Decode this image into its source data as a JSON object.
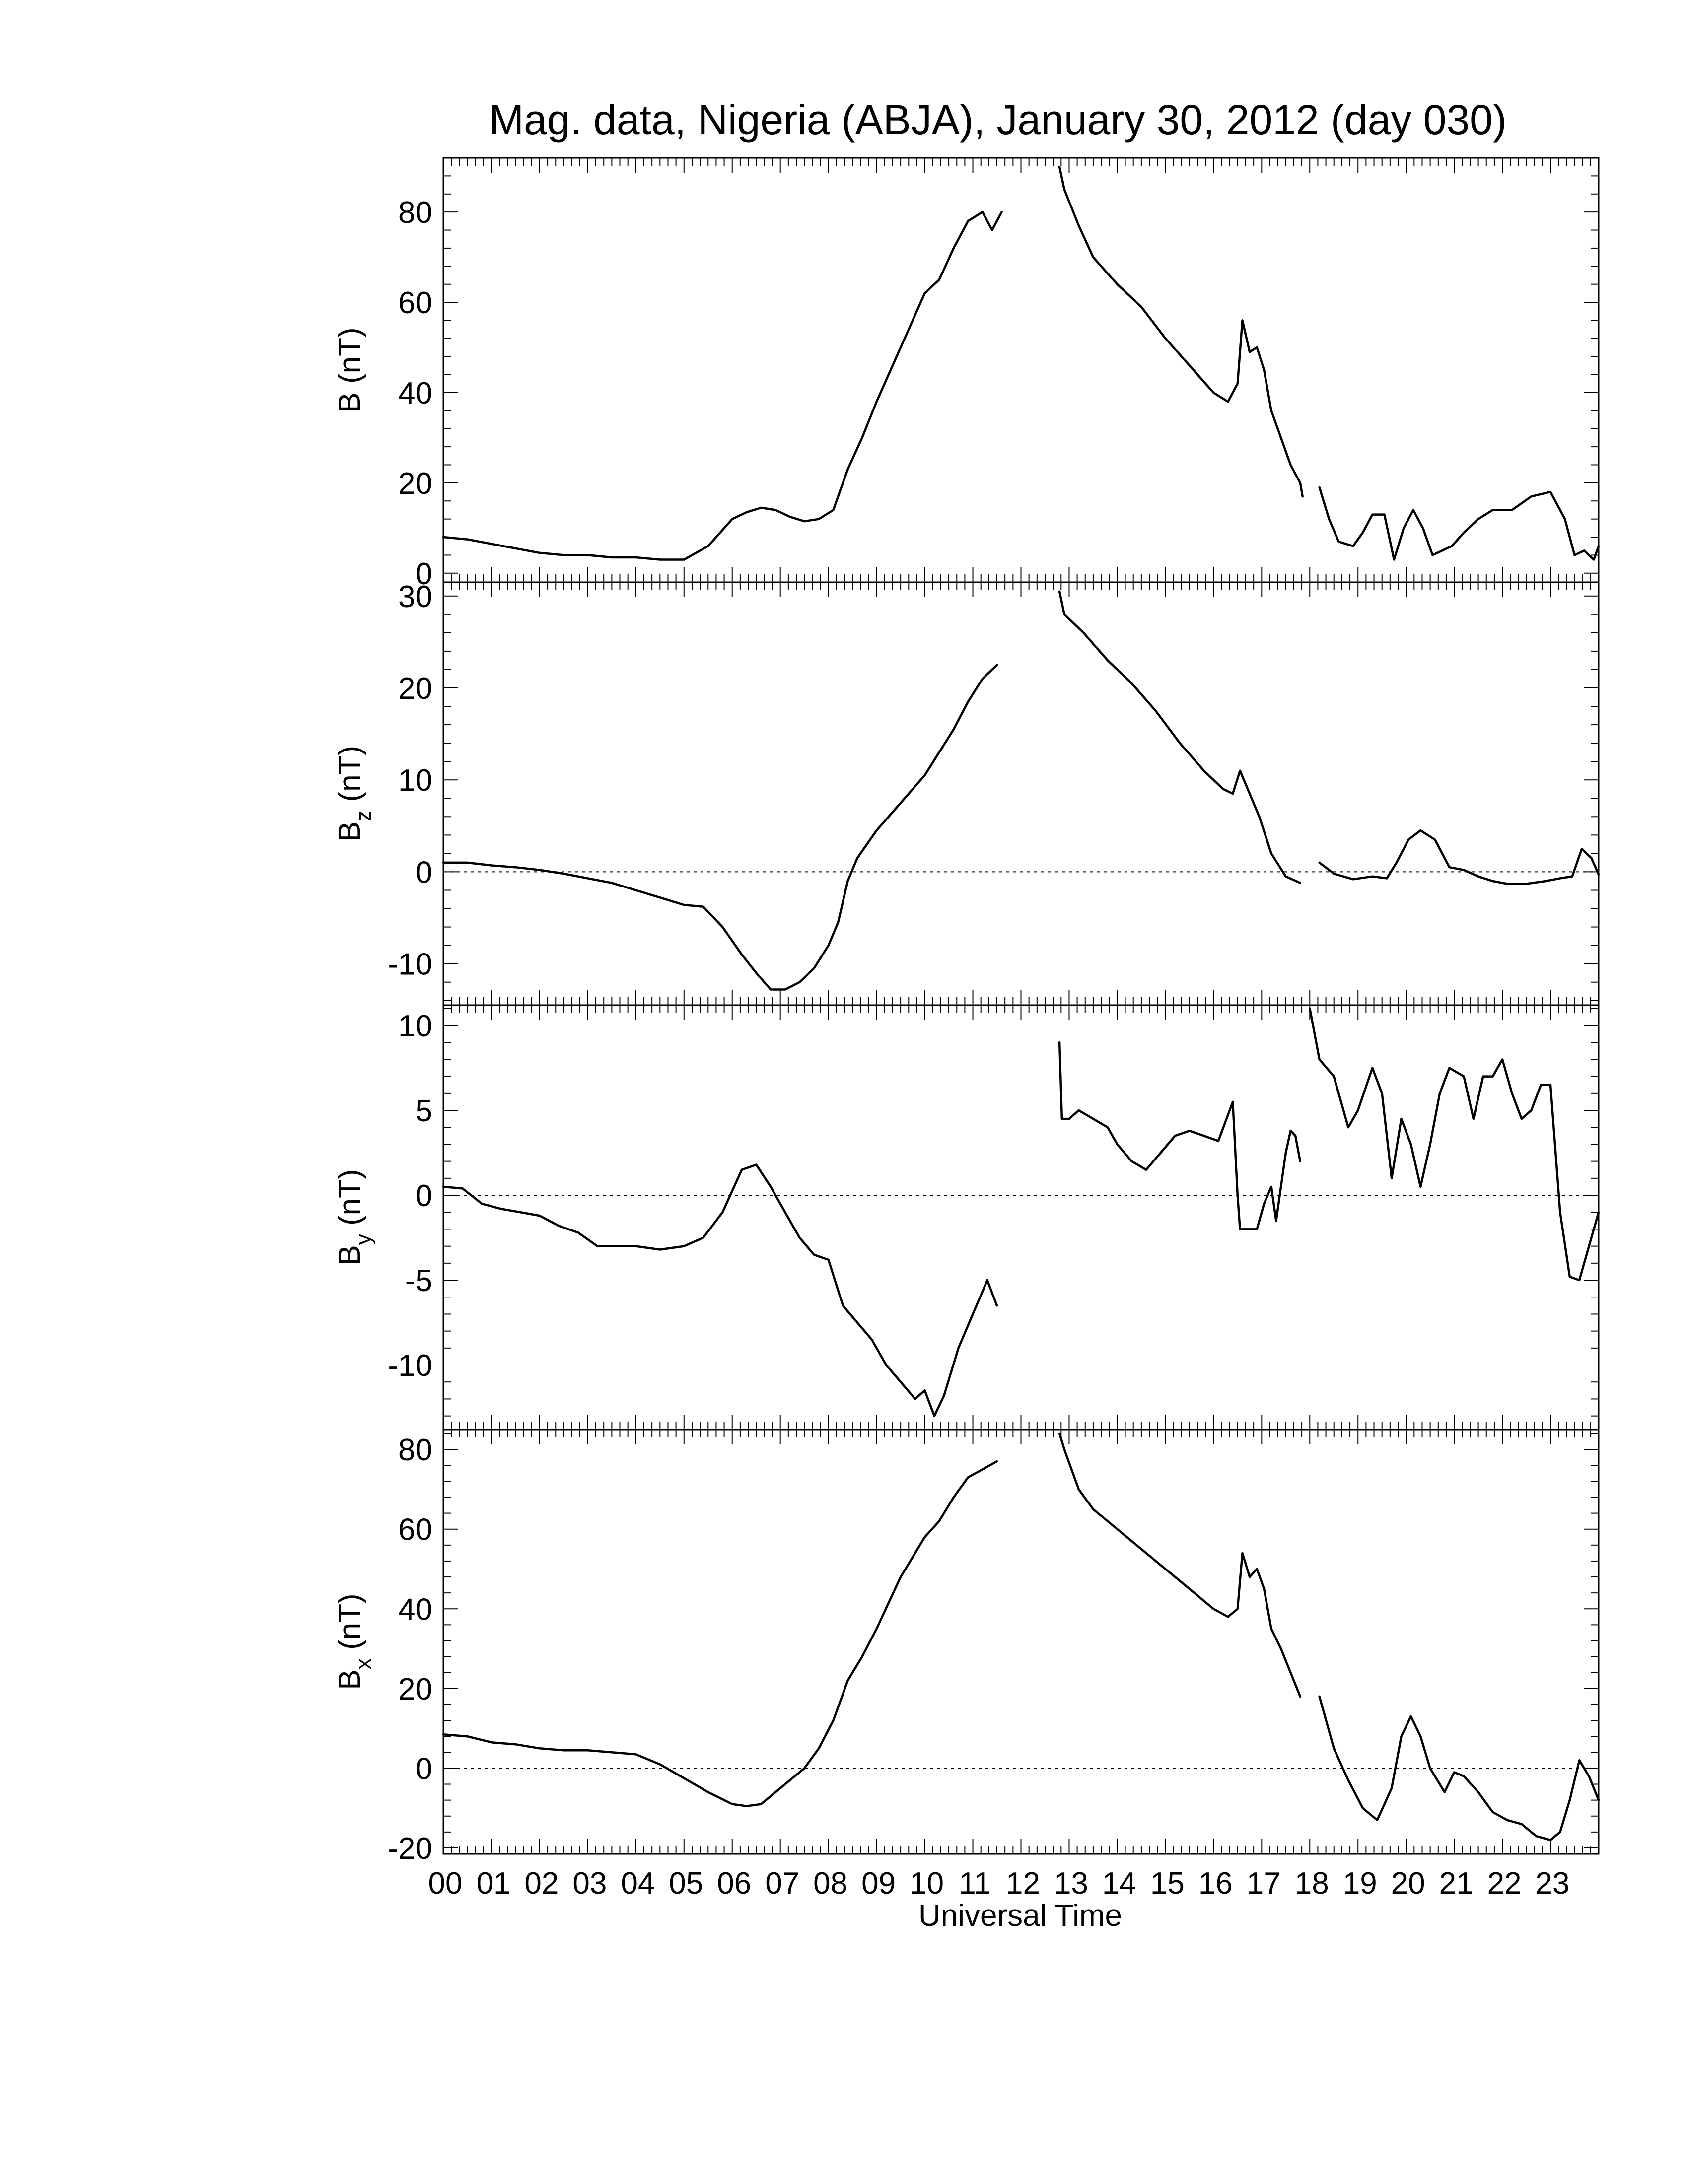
{
  "chart_data": {
    "type": "line",
    "title": "Mag. data, Nigeria (ABJA), January 30, 2012 (day 030)",
    "xlabel": "Universal Time",
    "x_tick_labels": [
      "00",
      "01",
      "02",
      "03",
      "04",
      "05",
      "06",
      "07",
      "08",
      "09",
      "10",
      "11",
      "12",
      "13",
      "14",
      "15",
      "16",
      "17",
      "18",
      "19",
      "20",
      "21",
      "22",
      "23"
    ],
    "xlim": [
      0,
      24
    ],
    "panels": [
      {
        "name": "B",
        "ylabel_main": "B",
        "ylabel_sub": "",
        "ylabel_unit": " (nT)",
        "ylim": [
          -2,
          92
        ],
        "yticks": [
          0,
          20,
          40,
          60,
          80
        ],
        "zero_line": false,
        "series": [
          {
            "x": [
              0,
              0.5,
              1,
              1.5,
              2,
              2.5,
              3,
              3.5,
              4,
              4.5,
              5,
              5.5,
              6,
              6.3,
              6.6,
              6.9,
              7.2,
              7.5,
              7.8,
              8.1,
              8.4,
              8.7,
              9,
              9.5,
              10,
              10.3,
              10.6,
              10.9,
              11.2,
              11.4,
              11.6
            ],
            "y": [
              8,
              7.5,
              6.5,
              5.5,
              4.5,
              4,
              4,
              3.5,
              3.5,
              3,
              3,
              6,
              12,
              13.5,
              14.5,
              14,
              12.5,
              11.5,
              12,
              14,
              23,
              30,
              38,
              50,
              62,
              65,
              72,
              78,
              80,
              76,
              80
            ]
          },
          {
            "x": [
              12.8,
              12.9,
              13.2,
              13.5,
              14,
              14.5,
              15,
              15.5,
              16,
              16.3,
              16.5,
              16.6,
              16.75,
              16.9,
              17.05,
              17.2,
              17.4,
              17.6,
              17.8,
              17.85
            ],
            "y": [
              90,
              85,
              77,
              70,
              64,
              59,
              52,
              46,
              40,
              38,
              42,
              56,
              49,
              50,
              45,
              36,
              30,
              24,
              20,
              17
            ]
          },
          {
            "x": [
              18.2,
              18.4,
              18.6,
              18.9,
              19.1,
              19.3,
              19.55,
              19.75,
              19.95,
              20.15,
              20.35,
              20.55,
              20.75,
              20.95,
              21.2,
              21.5,
              21.8,
              22.2,
              22.6,
              23,
              23.3,
              23.5,
              23.7,
              23.9,
              24
            ],
            "y": [
              19,
              12,
              7,
              6,
              9,
              13,
              13,
              3,
              10,
              14,
              10,
              4,
              5,
              6,
              9,
              12,
              14,
              14,
              17,
              18,
              12,
              4,
              5,
              3,
              6
            ]
          }
        ]
      },
      {
        "name": "Bz",
        "ylabel_main": "B",
        "ylabel_sub": "z",
        "ylabel_unit": " (nT)",
        "ylim": [
          -14.5,
          31.5
        ],
        "yticks": [
          -10,
          0,
          10,
          20,
          30
        ],
        "zero_line": true,
        "series": [
          {
            "x": [
              0,
              0.5,
              1,
              1.5,
              2,
              2.5,
              3,
              3.5,
              4,
              4.5,
              5,
              5.4,
              5.8,
              6.2,
              6.5,
              6.8,
              7.1,
              7.4,
              7.7,
              8,
              8.2,
              8.4,
              8.6,
              9,
              9.5,
              10,
              10.3,
              10.6,
              10.9,
              11.2,
              11.5
            ],
            "y": [
              1,
              1,
              0.7,
              0.5,
              0.2,
              -0.2,
              -0.7,
              -1.2,
              -2,
              -2.8,
              -3.6,
              -3.8,
              -6,
              -9,
              -11,
              -12.8,
              -12.8,
              -12,
              -10.5,
              -8,
              -5.5,
              -1,
              1.5,
              4.5,
              7.5,
              10.5,
              13,
              15.5,
              18.5,
              21,
              22.5
            ]
          },
          {
            "x": [
              12.8,
              12.9,
              13.3,
              13.8,
              14.3,
              14.8,
              15.3,
              15.8,
              16.2,
              16.4,
              16.55,
              16.75,
              16.95,
              17.2,
              17.5,
              17.8
            ],
            "y": [
              30.5,
              28,
              26,
              23,
              20.5,
              17.5,
              14,
              11,
              9,
              8.5,
              11,
              8.5,
              6,
              2,
              -0.5,
              -1.2
            ]
          },
          {
            "x": [
              18.2,
              18.5,
              18.9,
              19.3,
              19.6,
              19.8,
              20.05,
              20.3,
              20.6,
              20.9,
              21.2,
              21.5,
              21.8,
              22.1,
              22.5,
              22.9,
              23.2,
              23.45,
              23.65,
              23.85,
              24
            ],
            "y": [
              1,
              -0.2,
              -0.8,
              -0.5,
              -0.7,
              1,
              3.5,
              4.5,
              3.5,
              0.5,
              0.2,
              -0.5,
              -1,
              -1.3,
              -1.3,
              -1,
              -0.7,
              -0.5,
              2.5,
              1.5,
              -0.3
            ]
          }
        ]
      },
      {
        "name": "By",
        "ylabel_main": "B",
        "ylabel_sub": "y",
        "ylabel_unit": " (nT)",
        "ylim": [
          -13.8,
          11.2
        ],
        "yticks": [
          -10,
          -5,
          0,
          5,
          10
        ],
        "zero_line": true,
        "series": [
          {
            "x": [
              0,
              0.4,
              0.8,
              1.2,
              1.6,
              2,
              2.4,
              2.8,
              3.2,
              3.6,
              4,
              4.5,
              5,
              5.4,
              5.8,
              6.2,
              6.5,
              6.8,
              7.1,
              7.4,
              7.7,
              8,
              8.3,
              8.6,
              8.9,
              9.2,
              9.5,
              9.8,
              10,
              10.2,
              10.4,
              10.7,
              11,
              11.3,
              11.5
            ],
            "y": [
              0.5,
              0.4,
              -0.5,
              -0.8,
              -1,
              -1.2,
              -1.8,
              -2.2,
              -3,
              -3,
              -3,
              -3.2,
              -3,
              -2.5,
              -1,
              1.5,
              1.8,
              0.5,
              -1,
              -2.5,
              -3.5,
              -3.8,
              -6.5,
              -7.5,
              -8.5,
              -10,
              -11,
              -12,
              -11.5,
              -13,
              -11.8,
              -9,
              -7,
              -5,
              -6.5
            ]
          },
          {
            "x": [
              12.8,
              12.85,
              13,
              13.2,
              13.5,
              13.8,
              14,
              14.3,
              14.6,
              14.9,
              15.2,
              15.5,
              15.8,
              16.1,
              16.4,
              16.5,
              16.55,
              16.7,
              16.9,
              17.05,
              17.2,
              17.3,
              17.4,
              17.5,
              17.6,
              17.7,
              17.8
            ],
            "y": [
              9,
              4.5,
              4.5,
              5,
              4.5,
              4,
              3,
              2,
              1.5,
              2.5,
              3.5,
              3.8,
              3.5,
              3.2,
              5.5,
              0,
              -2,
              -2,
              -2,
              -0.5,
              0.5,
              -1.5,
              0.5,
              2.5,
              3.8,
              3.5,
              2
            ]
          },
          {
            "x": [
              18.0,
              18.2,
              18.5,
              18.8,
              19.0,
              19.3,
              19.5,
              19.7,
              19.9,
              20.1,
              20.3,
              20.5,
              20.7,
              20.9,
              21.2,
              21.4,
              21.6,
              21.8,
              22,
              22.2,
              22.4,
              22.6,
              22.8,
              23,
              23.2,
              23.4,
              23.6,
              23.8,
              24
            ],
            "y": [
              11,
              8,
              7,
              4,
              5,
              7.5,
              6,
              1,
              4.5,
              3,
              0.5,
              3,
              6,
              7.5,
              7,
              4.5,
              7,
              7,
              8,
              6,
              4.5,
              5,
              6.5,
              6.5,
              -1,
              -4.8,
              -5,
              -3,
              -1
            ]
          }
        ]
      },
      {
        "name": "Bx",
        "ylabel_main": "B",
        "ylabel_sub": "x",
        "ylabel_unit": " (nT)",
        "ylim": [
          -21.5,
          85
        ],
        "yticks": [
          -20,
          0,
          20,
          40,
          60,
          80
        ],
        "zero_line": true,
        "series": [
          {
            "x": [
              0,
              0.5,
              1,
              1.5,
              2,
              2.5,
              3,
              3.5,
              4,
              4.5,
              5,
              5.5,
              6,
              6.3,
              6.6,
              6.9,
              7.2,
              7.5,
              7.8,
              8.1,
              8.4,
              8.7,
              9,
              9.5,
              10,
              10.3,
              10.6,
              10.9,
              11.2,
              11.5
            ],
            "y": [
              8.5,
              8,
              6.5,
              6,
              5,
              4.5,
              4.5,
              4,
              3.5,
              1,
              -2.5,
              -6,
              -9,
              -9.5,
              -9,
              -6,
              -3,
              0,
              5,
              12,
              22,
              28,
              35,
              48,
              58,
              62,
              68,
              73,
              75,
              77
            ]
          },
          {
            "x": [
              12.8,
              12.9,
              13.2,
              13.5,
              14,
              14.5,
              15,
              15.5,
              16,
              16.3,
              16.5,
              16.6,
              16.75,
              16.9,
              17.05,
              17.2,
              17.4,
              17.6,
              17.8
            ],
            "y": [
              84,
              80,
              70,
              65,
              60,
              55,
              50,
              45,
              40,
              38,
              40,
              54,
              48,
              50,
              45,
              35,
              30,
              24,
              18
            ]
          },
          {
            "x": [
              18.2,
              18.5,
              18.8,
              19.1,
              19.4,
              19.7,
              19.9,
              20.1,
              20.3,
              20.5,
              20.8,
              21,
              21.2,
              21.5,
              21.8,
              22.1,
              22.4,
              22.7,
              23,
              23.2,
              23.4,
              23.6,
              23.8,
              24
            ],
            "y": [
              18,
              5,
              -3,
              -10,
              -13,
              -5,
              8,
              13,
              8,
              0,
              -6,
              -1,
              -2,
              -6,
              -11,
              -13,
              -14,
              -17,
              -18,
              -16,
              -8,
              2,
              -2,
              -8
            ]
          }
        ]
      }
    ]
  }
}
